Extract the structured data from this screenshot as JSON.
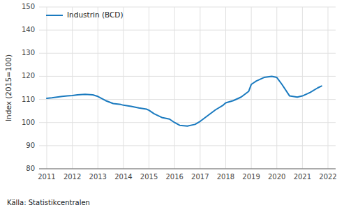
{
  "chart_data": {
    "type": "line",
    "ylabel": "Index (2015=100)",
    "caption": "Källa: Statistikcentralen",
    "x": [
      2011.0,
      2011.2,
      2011.4,
      2011.6,
      2011.8,
      2012.0,
      2012.2,
      2012.5,
      2012.8,
      2013.0,
      2013.3,
      2013.6,
      2013.9,
      2014.0,
      2014.3,
      2014.6,
      2014.9,
      2015.0,
      2015.2,
      2015.5,
      2015.8,
      2016.0,
      2016.2,
      2016.5,
      2016.8,
      2017.0,
      2017.3,
      2017.6,
      2017.9,
      2018.0,
      2018.3,
      2018.6,
      2018.9,
      2019.0,
      2019.2,
      2019.5,
      2019.8,
      2020.0,
      2020.2,
      2020.5,
      2020.8,
      2021.0,
      2021.3,
      2021.6,
      2021.75
    ],
    "series": [
      {
        "name": "Industrin (BCD)",
        "color": "#1a7abf",
        "values": [
          110.5,
          110.7,
          111.0,
          111.3,
          111.5,
          111.7,
          112.0,
          112.2,
          112.0,
          111.3,
          109.5,
          108.2,
          107.8,
          107.5,
          107.0,
          106.3,
          105.8,
          105.3,
          103.8,
          102.2,
          101.5,
          100.0,
          98.8,
          98.5,
          99.2,
          100.5,
          103.0,
          105.5,
          107.5,
          108.5,
          109.5,
          111.0,
          113.5,
          116.5,
          118.0,
          119.5,
          120.0,
          119.5,
          116.5,
          111.5,
          111.0,
          111.5,
          113.0,
          115.0,
          115.8
        ]
      }
    ],
    "xlim": [
      2010.7,
      2022.3
    ],
    "xticks": [
      2011,
      2012,
      2013,
      2014,
      2015,
      2016,
      2017,
      2018,
      2019,
      2020,
      2021,
      2022
    ],
    "ylim": [
      80,
      150
    ],
    "yticks": [
      80,
      90,
      100,
      110,
      120,
      130,
      140,
      150
    ],
    "grid": true,
    "legend": "upper left"
  }
}
